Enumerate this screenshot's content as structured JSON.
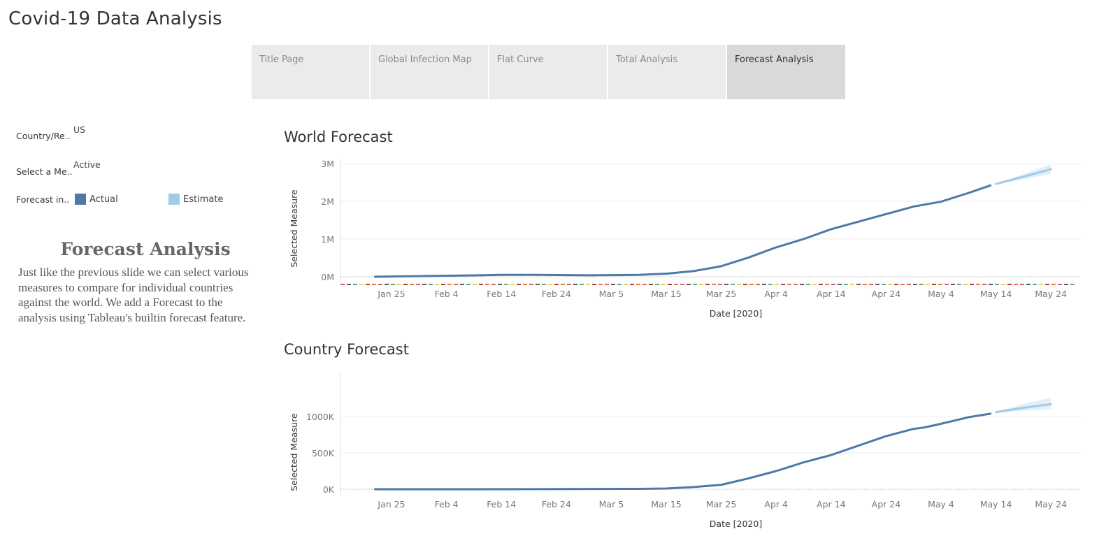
{
  "app": {
    "title": "Covid-19 Data Analysis"
  },
  "tabs": [
    {
      "label": "Title Page",
      "active": false
    },
    {
      "label": "Global Infection Map",
      "active": false
    },
    {
      "label": "Flat Curve",
      "active": false
    },
    {
      "label": "Total Analysis",
      "active": false
    },
    {
      "label": "Forecast Analysis",
      "active": true
    }
  ],
  "filters": {
    "country": {
      "label": "Country/Re..",
      "value": "US"
    },
    "measure": {
      "label": "Select a Me..",
      "value": "Active"
    },
    "forecast": {
      "label": "Forecast in..",
      "actual": "Actual",
      "estimate": "Estimate"
    }
  },
  "colors": {
    "actual": "#4e79a7",
    "estimate": "#a0cbe8",
    "active_tab": "#d9d9d9",
    "tab": "#ebebeb"
  },
  "description": {
    "title": "Forecast Analysis",
    "lines": [
      "Just like the previous slide we can select various",
      "measures to compare for individual countries",
      "against the world. We add a Forecast to the",
      "analysis using Tableau's builtin forecast feature."
    ]
  },
  "chart_data": [
    {
      "type": "line",
      "title": "World Forecast",
      "xlabel": "Date [2020]",
      "ylabel": "Selected Measure",
      "x_ticks": [
        "Jan 25",
        "Feb 4",
        "Feb 14",
        "Feb 24",
        "Mar 5",
        "Mar 15",
        "Mar 25",
        "Apr 4",
        "Apr 14",
        "Apr 24",
        "May 4",
        "May 14",
        "May 24"
      ],
      "y_ticks": [
        "0M",
        "1M",
        "2M",
        "3M"
      ],
      "ylim": [
        0,
        3000000
      ],
      "series": [
        {
          "name": "Actual",
          "x": [
            "2020-01-22",
            "2020-02-01",
            "2020-02-10",
            "2020-02-14",
            "2020-02-20",
            "2020-03-01",
            "2020-03-10",
            "2020-03-15",
            "2020-03-20",
            "2020-03-25",
            "2020-03-30",
            "2020-04-04",
            "2020-04-09",
            "2020-04-14",
            "2020-04-19",
            "2020-04-24",
            "2020-04-29",
            "2020-05-04",
            "2020-05-09",
            "2020-05-13"
          ],
          "y": [
            0,
            20000,
            40000,
            50000,
            50000,
            40000,
            50000,
            80000,
            150000,
            280000,
            510000,
            780000,
            1000000,
            1260000,
            1460000,
            1660000,
            1860000,
            1990000,
            2220000,
            2420000
          ]
        },
        {
          "name": "Estimate",
          "x": [
            "2020-05-14",
            "2020-05-19",
            "2020-05-24"
          ],
          "y": [
            2460000,
            2650000,
            2850000
          ],
          "upper": [
            2470000,
            2720000,
            2980000
          ],
          "lower": [
            2450000,
            2580000,
            2730000
          ]
        }
      ]
    },
    {
      "type": "line",
      "title": "Country Forecast",
      "xlabel": "Date [2020]",
      "ylabel": "Selected Measure",
      "x_ticks": [
        "Jan 25",
        "Feb 4",
        "Feb 14",
        "Feb 24",
        "Mar 5",
        "Mar 15",
        "Mar 25",
        "Apr 4",
        "Apr 14",
        "Apr 24",
        "May 4",
        "May 14",
        "May 24"
      ],
      "y_ticks": [
        "0K",
        "500K",
        "1000K"
      ],
      "ylim": [
        0,
        1250000
      ],
      "series": [
        {
          "name": "Actual",
          "x": [
            "2020-01-22",
            "2020-02-10",
            "2020-03-10",
            "2020-03-15",
            "2020-03-20",
            "2020-03-25",
            "2020-03-30",
            "2020-04-04",
            "2020-04-09",
            "2020-04-14",
            "2020-04-19",
            "2020-04-24",
            "2020-04-29",
            "2020-05-01",
            "2020-05-04",
            "2020-05-09",
            "2020-05-13"
          ],
          "y": [
            0,
            0,
            5000,
            10000,
            30000,
            60000,
            150000,
            250000,
            370000,
            470000,
            600000,
            730000,
            830000,
            850000,
            900000,
            990000,
            1040000
          ]
        },
        {
          "name": "Estimate",
          "x": [
            "2020-05-14",
            "2020-05-19",
            "2020-05-24"
          ],
          "y": [
            1060000,
            1120000,
            1170000
          ],
          "upper": [
            1070000,
            1170000,
            1260000
          ],
          "lower": [
            1050000,
            1080000,
            1100000
          ]
        }
      ]
    }
  ]
}
